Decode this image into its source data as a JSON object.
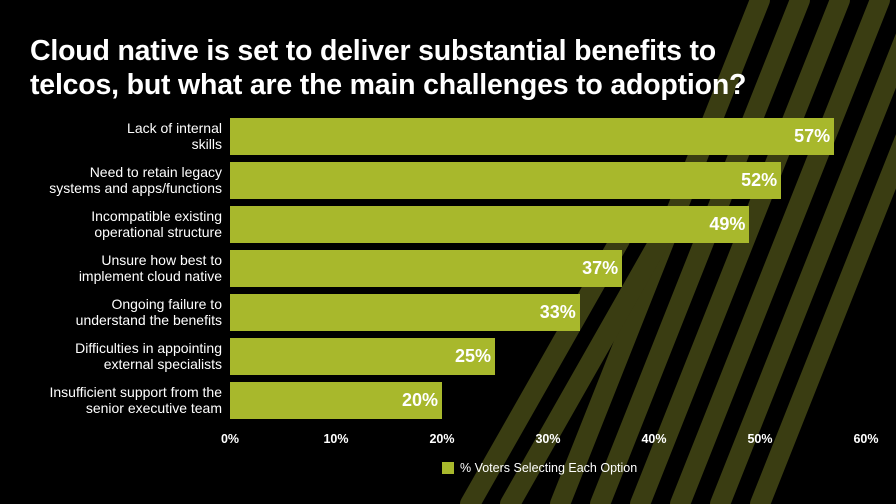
{
  "title_line1": "Cloud native is set to deliver substantial benefits to",
  "title_line2": "telcos, but what are the main challenges to adoption?",
  "colors": {
    "background": "#000000",
    "bar": "#a8b82c",
    "text": "#ffffff",
    "decoration": "#3a3d12"
  },
  "chart_data": {
    "type": "bar",
    "orientation": "horizontal",
    "categories": [
      [
        "Lack of internal",
        "skills"
      ],
      [
        "Need to retain legacy",
        "systems and apps/functions"
      ],
      [
        "Incompatible existing",
        "operational structure"
      ],
      [
        "Unsure how best to",
        "implement cloud native"
      ],
      [
        "Ongoing failure to",
        "understand the benefits"
      ],
      [
        "Difficulties in appointing",
        "external specialists"
      ],
      [
        "Insufficient support from the",
        "senior executive team"
      ]
    ],
    "values": [
      57,
      52,
      49,
      37,
      33,
      25,
      20
    ],
    "value_labels": [
      "57%",
      "52%",
      "49%",
      "37%",
      "33%",
      "25%",
      "20%"
    ],
    "x_ticks": [
      "0%",
      "10%",
      "20%",
      "30%",
      "40%",
      "50%",
      "60%"
    ],
    "xlim": [
      0,
      60
    ],
    "legend": "% Voters Selecting Each Option",
    "legend_position": "bottom",
    "grid": false
  }
}
